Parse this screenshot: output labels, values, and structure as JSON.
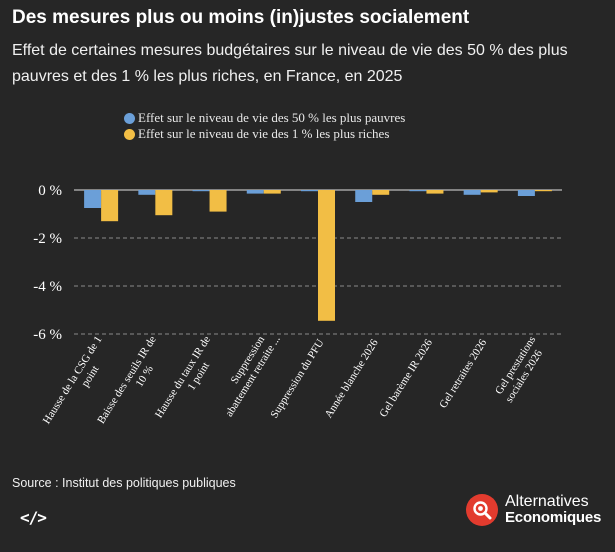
{
  "title": "Des mesures plus ou moins (in)justes socialement",
  "subtitle": "Effet de certaines mesures budgétaires sur le niveau de vie des 50 % des plus pauvres et des 1 % les plus riches, en France, en 2025",
  "source": "Source : Institut des politiques publiques",
  "embed_icon": "</>",
  "logo": {
    "line1": "Alternatives",
    "line2": "Economiques",
    "icon": "magnifier-icon",
    "color": "#e23b2e"
  },
  "colors": {
    "poor": "#6b9fd8",
    "rich": "#f2be45",
    "background": "#262626"
  },
  "chart_data": {
    "type": "bar",
    "title": "Des mesures plus ou moins (in)justes socialement",
    "xlabel": "",
    "ylabel": "",
    "ylim": [
      -6,
      0.3
    ],
    "yticks": [
      0,
      -2,
      -4,
      -6
    ],
    "ytick_labels": [
      "0 %",
      "-2 %",
      "-4 %",
      "-6 %"
    ],
    "categories": [
      [
        "Hausse de la CSG de 1",
        "point"
      ],
      [
        "Baisse des seuils IR de",
        "10 %"
      ],
      [
        "Hausse du taux IR de",
        "1 point"
      ],
      [
        "Suppression",
        "abattement retraite ..."
      ],
      [
        "Suppression du PFU"
      ],
      [
        "Année blanche 2026"
      ],
      [
        "Gel barème IR 2026"
      ],
      [
        "Gel retraites 2026"
      ],
      [
        "Gel prestations",
        "sociales 2026"
      ]
    ],
    "series": [
      {
        "name": "Effet sur le niveau de vie des 50 % les plus pauvres",
        "color": "#6b9fd8",
        "values": [
          -0.75,
          -0.2,
          -0.05,
          -0.15,
          -0.05,
          -0.5,
          -0.05,
          -0.2,
          -0.25
        ]
      },
      {
        "name": "Effet sur le niveau de vie des 1 % les plus riches",
        "color": "#f2be45",
        "values": [
          -1.3,
          -1.05,
          -0.9,
          -0.15,
          -5.45,
          -0.2,
          -0.15,
          -0.1,
          -0.05
        ]
      }
    ],
    "legend": "top-left"
  }
}
